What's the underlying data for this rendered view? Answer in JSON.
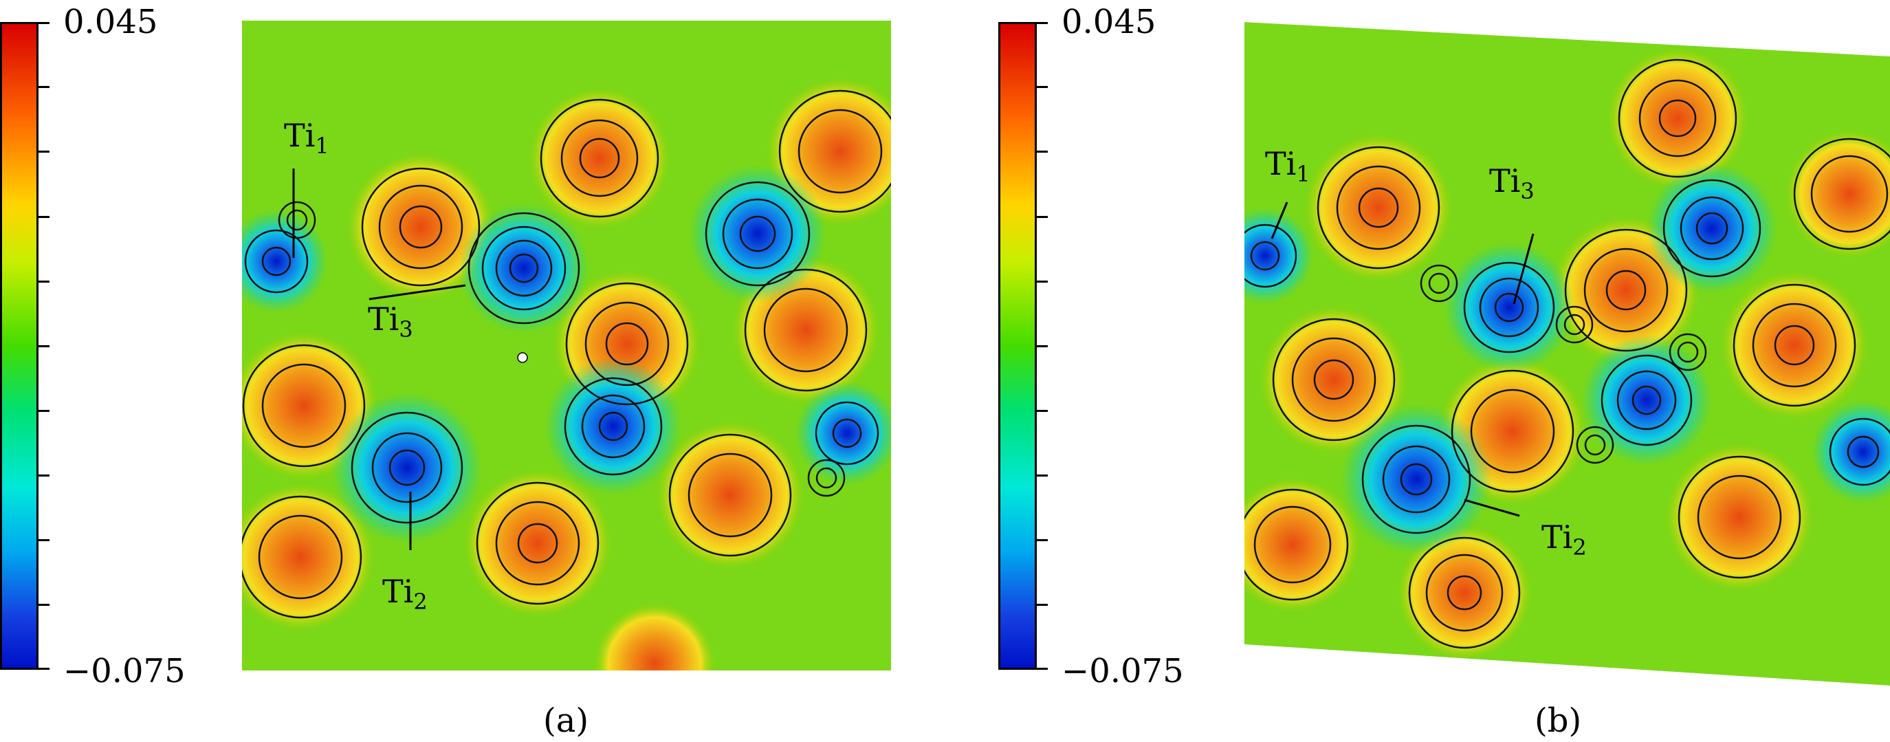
{
  "colorbar": {
    "max_label": "0.045",
    "min_label": "−0.075",
    "colors": [
      "#d90000",
      "#ffd400",
      "#44dc00",
      "#00e8d8",
      "#0010c8"
    ]
  },
  "panels": [
    {
      "label": "(a)",
      "atoms": [
        {
          "base": "Ti",
          "sub": "1"
        },
        {
          "base": "Ti",
          "sub": "3"
        },
        {
          "base": "Ti",
          "sub": "2"
        }
      ]
    },
    {
      "label": "(b)",
      "atoms": [
        {
          "base": "Ti",
          "sub": "1"
        },
        {
          "base": "Ti",
          "sub": "3"
        },
        {
          "base": "Ti",
          "sub": "2"
        }
      ]
    }
  ]
}
